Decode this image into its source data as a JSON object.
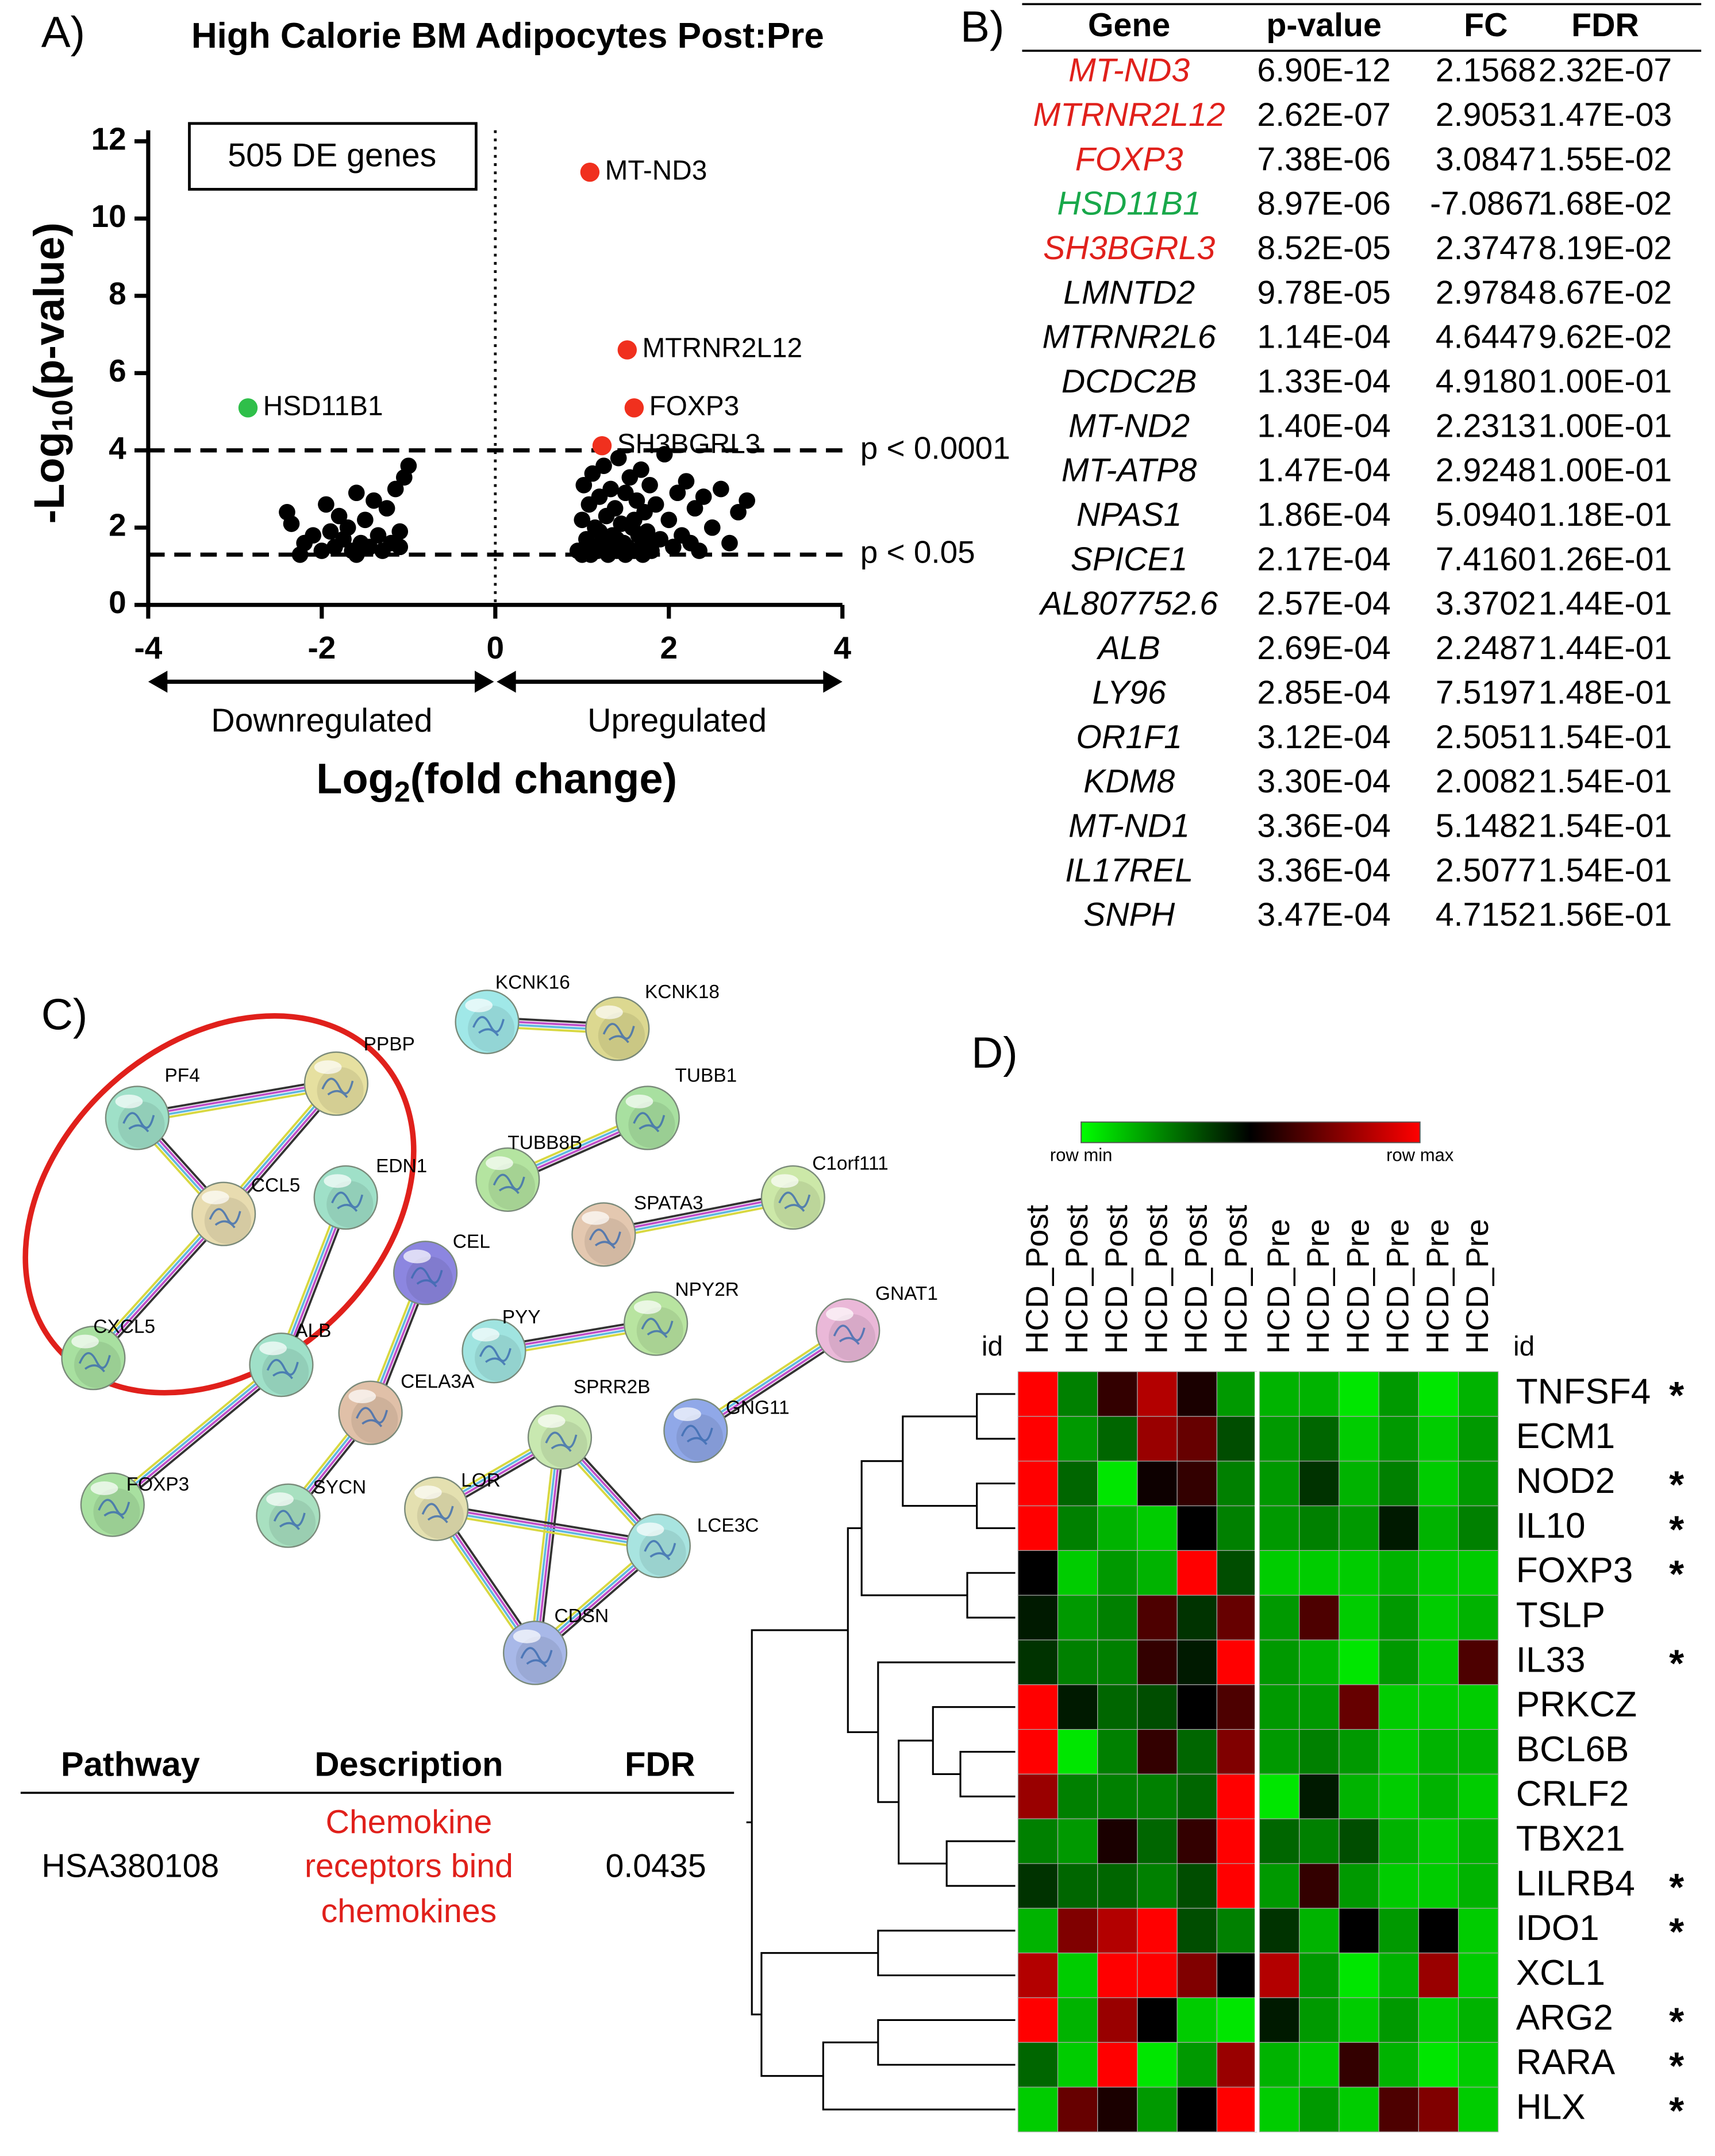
{
  "chart_data": [
    {
      "type": "scatter",
      "panel": "A)",
      "title": "High Calorie BM Adipocytes Post:Pre",
      "y_label": [
        "-Log",
        "10",
        "(p-value)"
      ],
      "x_label": [
        "Log",
        "2",
        "(fold change)"
      ],
      "box_text": "505 DE genes",
      "left_arrow_label": "Downregulated",
      "right_arrow_label": "Upregulated",
      "xlim": [
        -4,
        4
      ],
      "xticks": [
        -4,
        -2,
        0,
        2,
        4
      ],
      "ylim": [
        0,
        12
      ],
      "yticks": [
        0,
        2,
        4,
        6,
        8,
        10,
        12
      ],
      "color": "#000000",
      "x": [
        -2.4,
        -2.35,
        -2.2,
        -2.1,
        -2.0,
        -1.95,
        -1.9,
        -1.85,
        -1.8,
        -1.75,
        -1.7,
        -1.65,
        -1.6,
        -1.55,
        -1.5,
        -1.45,
        -1.4,
        -1.35,
        -1.3,
        -1.25,
        -1.2,
        -1.15,
        -1.1,
        -1.05,
        -1.0,
        -2.25,
        -1.6,
        -1.1,
        0.95,
        1.0,
        1.02,
        1.05,
        1.08,
        1.1,
        1.12,
        1.15,
        1.18,
        1.2,
        1.22,
        1.25,
        1.28,
        1.3,
        1.33,
        1.35,
        1.38,
        1.4,
        1.42,
        1.45,
        1.48,
        1.5,
        1.52,
        1.55,
        1.58,
        1.6,
        1.63,
        1.65,
        1.68,
        1.7,
        1.72,
        1.75,
        1.78,
        1.8,
        1.85,
        1.9,
        1.95,
        2.0,
        2.05,
        2.1,
        2.15,
        2.2,
        2.25,
        2.3,
        2.35,
        2.4,
        2.5,
        2.6,
        2.7,
        2.8,
        2.9,
        1.0,
        1.1,
        1.2,
        1.3,
        1.4,
        1.5,
        1.6,
        1.7,
        1.8
      ],
      "values": [
        2.4,
        2.1,
        1.6,
        1.8,
        1.4,
        2.6,
        1.9,
        1.5,
        2.3,
        1.7,
        2.0,
        1.4,
        2.9,
        1.6,
        2.2,
        1.5,
        2.7,
        1.8,
        1.4,
        2.5,
        1.6,
        3.0,
        1.9,
        3.3,
        3.6,
        1.3,
        1.3,
        1.5,
        1.4,
        2.2,
        3.1,
        1.7,
        2.6,
        1.5,
        3.4,
        2.0,
        1.4,
        2.8,
        1.6,
        3.6,
        2.3,
        1.5,
        3.0,
        1.8,
        2.5,
        1.4,
        3.8,
        2.1,
        1.6,
        2.9,
        1.5,
        3.3,
        2.0,
        1.4,
        2.7,
        1.8,
        3.5,
        1.5,
        2.4,
        1.9,
        3.1,
        1.4,
        2.6,
        1.7,
        3.9,
        2.2,
        1.5,
        2.9,
        1.8,
        3.2,
        1.6,
        2.5,
        1.4,
        2.8,
        2.0,
        3.0,
        1.6,
        2.4,
        2.7,
        1.3,
        1.3,
        1.9,
        1.3,
        1.7,
        1.3,
        2.2,
        1.3,
        1.6
      ],
      "highlights": {
        "labels": [
          "MT-ND3",
          "MTRNR2L12",
          "FOXP3",
          "SH3BGRL3",
          "HSD11B1"
        ],
        "x": [
          1.09,
          1.52,
          1.6,
          1.23,
          -2.85
        ],
        "values": [
          11.2,
          6.6,
          5.1,
          4.12,
          5.1
        ],
        "colors": [
          "#f0301e",
          "#f0301e",
          "#f0301e",
          "#f0301e",
          "#2fbf4a"
        ]
      },
      "hlines": [
        {
          "value": 4,
          "label": "p < 0.0001"
        },
        {
          "value": 1.301,
          "label": "p < 0.05"
        }
      ]
    },
    {
      "type": "heatmap",
      "panel": "D)",
      "id_label": "id",
      "colorbar_labels": [
        "row min",
        "row max"
      ],
      "colormap": [
        "#00ff00",
        "#000000",
        "#ff0000"
      ],
      "vlim": [
        -1,
        1
      ],
      "columns": [
        "HCD_Post",
        "HCD_Post",
        "HCD_Post",
        "HCD_Post",
        "HCD_Post",
        "HCD_Post",
        "HCD_Pre",
        "HCD_Pre",
        "HCD_Pre",
        "HCD_Pre",
        "HCD_Pre",
        "HCD_Pre"
      ],
      "rows": [
        "TNFSF4",
        "ECM1",
        "NOD2",
        "IL10",
        "FOXP3",
        "TSLP",
        "IL33",
        "PRKCZ",
        "BCL6B",
        "CRLF2",
        "TBX21",
        "LILRB4",
        "IDO1",
        "XCL1",
        "ARG2",
        "RARA",
        "HLX"
      ],
      "row_notes": [
        "*",
        null,
        "*",
        "*",
        "*",
        null,
        "*",
        null,
        null,
        null,
        null,
        "*",
        "*",
        null,
        "*",
        "*",
        "*"
      ],
      "values": [
        [
          1,
          -0.5,
          0.2,
          0.7,
          0.1,
          -0.6,
          -0.7,
          -0.7,
          -0.9,
          -0.6,
          -0.9,
          -0.7
        ],
        [
          1,
          -0.6,
          -0.4,
          0.6,
          0.4,
          -0.3,
          -0.6,
          -0.4,
          -0.8,
          -0.6,
          -0.8,
          -0.6
        ],
        [
          1,
          -0.4,
          -0.9,
          0.05,
          0.2,
          -0.5,
          -0.6,
          -0.2,
          -0.7,
          -0.5,
          -0.8,
          -0.6
        ],
        [
          1,
          -0.5,
          -0.7,
          -0.8,
          0,
          -0.5,
          -0.6,
          -0.5,
          -0.6,
          -0.1,
          -0.7,
          -0.5
        ],
        [
          0,
          -0.8,
          -0.6,
          -0.7,
          1,
          -0.3,
          -0.8,
          -0.8,
          -0.8,
          -0.7,
          -0.8,
          -0.8
        ],
        [
          -0.1,
          -0.6,
          -0.5,
          0.3,
          -0.2,
          0.4,
          -0.6,
          0.3,
          -0.8,
          -0.6,
          -0.8,
          -0.7
        ],
        [
          -0.2,
          -0.5,
          -0.5,
          0.2,
          -0.1,
          1,
          -0.6,
          -0.7,
          -0.9,
          -0.6,
          -0.8,
          0.3
        ],
        [
          1,
          -0.1,
          -0.4,
          -0.3,
          0,
          0.3,
          -0.6,
          -0.6,
          0.4,
          -0.8,
          -0.8,
          -0.8
        ],
        [
          1,
          -0.9,
          -0.5,
          0.2,
          -0.4,
          0.5,
          -0.6,
          -0.5,
          -0.6,
          -0.8,
          -0.7,
          -0.7
        ],
        [
          0.6,
          -0.5,
          -0.5,
          -0.5,
          -0.4,
          1,
          -0.9,
          -0.1,
          -0.7,
          -0.8,
          -0.7,
          -0.8
        ],
        [
          -0.5,
          -0.6,
          0.1,
          -0.4,
          0.2,
          1,
          -0.4,
          -0.5,
          -0.3,
          -0.7,
          -0.8,
          -0.7
        ],
        [
          -0.2,
          -0.4,
          -0.4,
          -0.5,
          -0.3,
          1,
          -0.6,
          0.2,
          -0.6,
          -0.8,
          -0.8,
          -0.7
        ],
        [
          -0.7,
          0.5,
          0.7,
          1,
          -0.3,
          -0.5,
          -0.2,
          -0.7,
          0,
          -0.6,
          0,
          -0.8
        ],
        [
          0.7,
          -0.8,
          1,
          1,
          0.5,
          0,
          0.7,
          -0.6,
          -0.9,
          -0.7,
          0.6,
          -0.8
        ],
        [
          1,
          -0.7,
          0.6,
          0,
          -0.8,
          -0.9,
          -0.1,
          -0.6,
          -0.8,
          -0.6,
          -0.8,
          -0.7
        ],
        [
          -0.4,
          -0.8,
          1,
          -0.9,
          -0.6,
          0.6,
          -0.7,
          -0.8,
          0.2,
          -0.7,
          -0.9,
          -0.8
        ],
        [
          -0.8,
          0.4,
          0.1,
          -0.6,
          0,
          1,
          -0.8,
          -0.6,
          -0.8,
          0.3,
          0.5,
          -0.8
        ]
      ]
    }
  ],
  "table_b": {
    "panel": "B)",
    "header": [
      "Gene",
      "p-value",
      "FC",
      "FDR"
    ],
    "gene_colors": [
      "#e0201b",
      "#e0201b",
      "#e0201b",
      "#18a84a",
      "#e0201b",
      "#000000",
      "#000000",
      "#000000",
      "#000000",
      "#000000",
      "#000000",
      "#000000",
      "#000000",
      "#000000",
      "#000000",
      "#000000",
      "#000000",
      "#000000",
      "#000000",
      "#000000"
    ],
    "rows": [
      [
        "MT-ND3",
        "6.90E-12",
        "2.1568",
        "2.32E-07"
      ],
      [
        "MTRNR2L12",
        "2.62E-07",
        "2.9053",
        "1.47E-03"
      ],
      [
        "FOXP3",
        "7.38E-06",
        "3.0847",
        "1.55E-02"
      ],
      [
        "HSD11B1",
        "8.97E-06",
        "-7.0867",
        "1.68E-02"
      ],
      [
        "SH3BGRL3",
        "8.52E-05",
        "2.3747",
        "8.19E-02"
      ],
      [
        "LMNTD2",
        "9.78E-05",
        "2.9784",
        "8.67E-02"
      ],
      [
        "MTRNR2L6",
        "1.14E-04",
        "4.6447",
        "9.62E-02"
      ],
      [
        "DCDC2B",
        "1.33E-04",
        "4.9180",
        "1.00E-01"
      ],
      [
        "MT-ND2",
        "1.40E-04",
        "2.2313",
        "1.00E-01"
      ],
      [
        "MT-ATP8",
        "1.47E-04",
        "2.9248",
        "1.00E-01"
      ],
      [
        "NPAS1",
        "1.86E-04",
        "5.0940",
        "1.18E-01"
      ],
      [
        "SPICE1",
        "2.17E-04",
        "7.4160",
        "1.26E-01"
      ],
      [
        "AL807752.6",
        "2.57E-04",
        "3.3702",
        "1.44E-01"
      ],
      [
        "ALB",
        "2.69E-04",
        "2.2487",
        "1.44E-01"
      ],
      [
        "LY96",
        "2.85E-04",
        "7.5197",
        "1.48E-01"
      ],
      [
        "OR1F1",
        "3.12E-04",
        "2.5051",
        "1.54E-01"
      ],
      [
        "KDM8",
        "3.30E-04",
        "2.0082",
        "1.54E-01"
      ],
      [
        "MT-ND1",
        "3.36E-04",
        "5.1482",
        "1.54E-01"
      ],
      [
        "IL17REL",
        "3.36E-04",
        "2.5077",
        "1.54E-01"
      ],
      [
        "SNPH",
        "3.47E-04",
        "4.7152",
        "1.56E-01"
      ]
    ]
  },
  "network": {
    "panel": "C)",
    "nodes": [
      {
        "label": "PF4",
        "color": "#9fe0c8"
      },
      {
        "label": "PPBP",
        "color": "#e6e0a0"
      },
      {
        "label": "CCL5",
        "color": "#e8dcb0"
      },
      {
        "label": "EDN1",
        "color": "#9fe0c8"
      },
      {
        "label": "CXCL5",
        "color": "#a8e0a0"
      },
      {
        "label": "ALB",
        "color": "#9fe0c8"
      },
      {
        "label": "FOXP3",
        "color": "#a8e0a0"
      },
      {
        "label": "CEL",
        "color": "#8c86e0"
      },
      {
        "label": "CELA3A",
        "color": "#e0c0a8"
      },
      {
        "label": "SYCN",
        "color": "#a8e0c0"
      },
      {
        "label": "KCNK16",
        "color": "#a0e8e8"
      },
      {
        "label": "KCNK18",
        "color": "#dcd890"
      },
      {
        "label": "TUBB1",
        "color": "#a8e0a0"
      },
      {
        "label": "TUBB8B",
        "color": "#b4e4a0"
      },
      {
        "label": "SPATA3",
        "color": "#e4c8b0"
      },
      {
        "label": "C1orf111",
        "color": "#cce8a8"
      },
      {
        "label": "PYY",
        "color": "#a0e4e0"
      },
      {
        "label": "NPY2R",
        "color": "#b8e4a0"
      },
      {
        "label": "GNAT1",
        "color": "#eab8d8"
      },
      {
        "label": "GNG11",
        "color": "#90a8e8"
      },
      {
        "label": "SPRR2B",
        "color": "#c8e8b0"
      },
      {
        "label": "LOR",
        "color": "#e4e0b0"
      },
      {
        "label": "LCE3C",
        "color": "#a8e4e0"
      },
      {
        "label": "CDSN",
        "color": "#a8b8e8"
      }
    ],
    "edges": [
      [
        0,
        1
      ],
      [
        0,
        2
      ],
      [
        1,
        2
      ],
      [
        2,
        4
      ],
      [
        3,
        5
      ],
      [
        5,
        6
      ],
      [
        7,
        8
      ],
      [
        8,
        9
      ],
      [
        10,
        11
      ],
      [
        12,
        13
      ],
      [
        14,
        15
      ],
      [
        16,
        17
      ],
      [
        18,
        19
      ],
      [
        20,
        21
      ],
      [
        20,
        22
      ],
      [
        20,
        23
      ],
      [
        21,
        22
      ],
      [
        21,
        23
      ],
      [
        22,
        23
      ]
    ]
  },
  "pathway_table": {
    "header": [
      "Pathway",
      "Description",
      "FDR"
    ],
    "pathway": "HSA380108",
    "description": [
      "Chemokine",
      "receptors bind",
      "chemokines"
    ],
    "fdr": "0.0435"
  }
}
